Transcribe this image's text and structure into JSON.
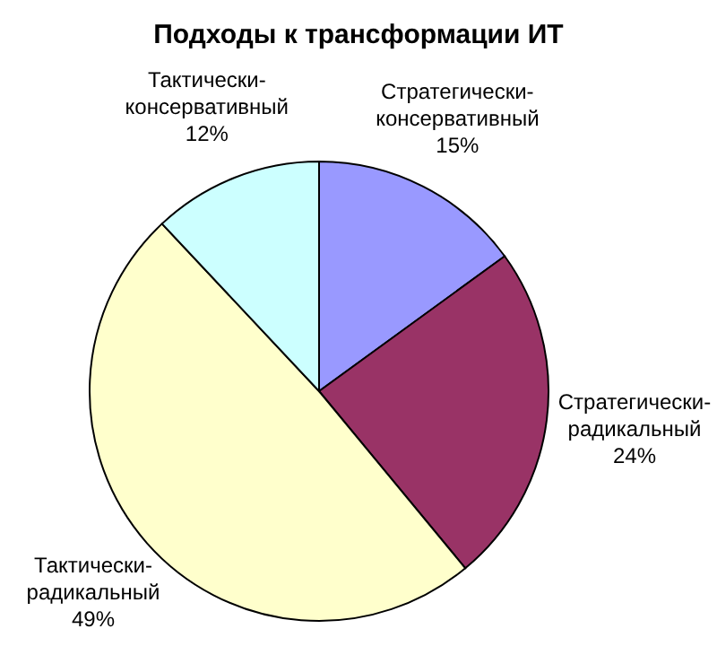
{
  "chart_data": {
    "type": "pie",
    "title": "Подходы к трансформации ИТ",
    "categories": [
      "Стратегически-консервативный",
      "Стратегически-радикальный",
      "Тактически-радикальный",
      "Тактически-консервативный"
    ],
    "values": [
      15,
      24,
      49,
      12
    ],
    "value_labels": [
      "15%",
      "24%",
      "49%",
      "12%"
    ],
    "colors": [
      "#9999ff",
      "#993366",
      "#ffffcc",
      "#ccffff"
    ]
  }
}
